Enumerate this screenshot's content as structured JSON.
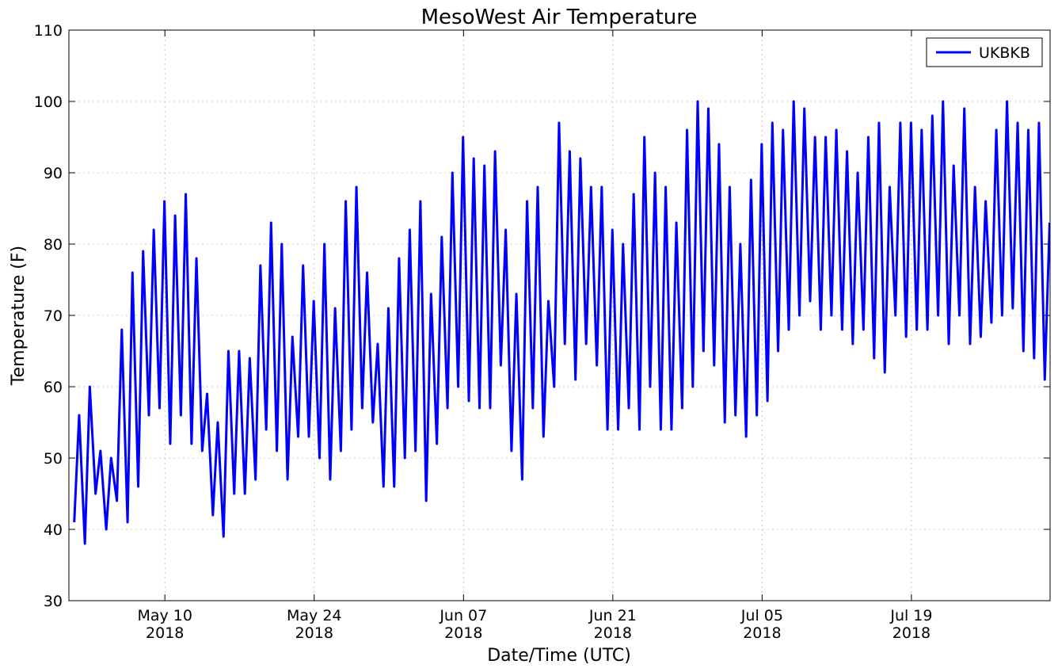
{
  "chart_data": {
    "type": "line",
    "title": "MesoWest Air Temperature",
    "x_label": "Date/Time (UTC)",
    "y_label": "Temperature (F)",
    "xlim": [
      "2018-05-01 00:00",
      "2018-08-01 00:00"
    ],
    "xticks": [
      {
        "value": "2018-05-10 00:00",
        "label": [
          "May 10",
          "2018"
        ]
      },
      {
        "value": "2018-05-24 00:00",
        "label": [
          "May 24",
          "2018"
        ]
      },
      {
        "value": "2018-06-07 00:00",
        "label": [
          "Jun 07",
          "2018"
        ]
      },
      {
        "value": "2018-06-21 00:00",
        "label": [
          "Jun 21",
          "2018"
        ]
      },
      {
        "value": "2018-07-05 00:00",
        "label": [
          "Jul 05",
          "2018"
        ]
      },
      {
        "value": "2018-07-19 00:00",
        "label": [
          "Jul 19",
          "2018"
        ]
      }
    ],
    "ylim": [
      30,
      110
    ],
    "yticks": [
      30,
      40,
      50,
      60,
      70,
      80,
      90,
      100,
      110
    ],
    "grid": true,
    "legend": "upper right",
    "x": [
      "2018-05-01 12:00",
      "2018-05-01 23:00",
      "2018-05-02 12:00",
      "2018-05-02 23:00",
      "2018-05-03 12:00",
      "2018-05-03 23:00",
      "2018-05-04 12:00",
      "2018-05-04 23:00",
      "2018-05-05 12:00",
      "2018-05-05 23:00",
      "2018-05-06 12:00",
      "2018-05-06 23:00",
      "2018-05-07 12:00",
      "2018-05-07 23:00",
      "2018-05-08 12:00",
      "2018-05-08 23:00",
      "2018-05-09 12:00",
      "2018-05-09 23:00",
      "2018-05-10 12:00",
      "2018-05-10 23:00",
      "2018-05-11 12:00",
      "2018-05-11 23:00",
      "2018-05-12 12:00",
      "2018-05-12 23:00",
      "2018-05-13 12:00",
      "2018-05-13 23:00",
      "2018-05-14 12:00",
      "2018-05-14 23:00",
      "2018-05-15 12:00",
      "2018-05-15 23:00",
      "2018-05-16 12:00",
      "2018-05-16 23:00",
      "2018-05-17 12:00",
      "2018-05-17 23:00",
      "2018-05-18 12:00",
      "2018-05-18 23:00",
      "2018-05-19 12:00",
      "2018-05-19 23:00",
      "2018-05-20 12:00",
      "2018-05-20 23:00",
      "2018-05-21 12:00",
      "2018-05-21 23:00",
      "2018-05-22 12:00",
      "2018-05-22 23:00",
      "2018-05-23 12:00",
      "2018-05-23 23:00",
      "2018-05-24 12:00",
      "2018-05-24 23:00",
      "2018-05-25 12:00",
      "2018-05-25 23:00",
      "2018-05-26 12:00",
      "2018-05-26 23:00",
      "2018-05-27 12:00",
      "2018-05-27 23:00",
      "2018-05-28 12:00",
      "2018-05-28 23:00",
      "2018-05-29 12:00",
      "2018-05-29 23:00",
      "2018-05-30 12:00",
      "2018-05-30 23:00",
      "2018-05-31 12:00",
      "2018-05-31 23:00",
      "2018-06-01 12:00",
      "2018-06-01 23:00",
      "2018-06-02 12:00",
      "2018-06-02 23:00",
      "2018-06-03 12:00",
      "2018-06-03 23:00",
      "2018-06-04 12:00",
      "2018-06-04 23:00",
      "2018-06-05 12:00",
      "2018-06-05 23:00",
      "2018-06-06 12:00",
      "2018-06-06 23:00",
      "2018-06-07 12:00",
      "2018-06-07 23:00",
      "2018-06-08 12:00",
      "2018-06-08 23:00",
      "2018-06-09 12:00",
      "2018-06-09 23:00",
      "2018-06-10 12:00",
      "2018-06-10 23:00",
      "2018-06-11 12:00",
      "2018-06-11 23:00",
      "2018-06-12 12:00",
      "2018-06-12 23:00",
      "2018-06-13 12:00",
      "2018-06-13 23:00",
      "2018-06-14 12:00",
      "2018-06-14 23:00",
      "2018-06-15 12:00",
      "2018-06-15 23:00",
      "2018-06-16 12:00",
      "2018-06-16 23:00",
      "2018-06-17 12:00",
      "2018-06-17 23:00",
      "2018-06-18 12:00",
      "2018-06-18 23:00",
      "2018-06-19 12:00",
      "2018-06-19 23:00",
      "2018-06-20 12:00",
      "2018-06-20 23:00",
      "2018-06-21 12:00",
      "2018-06-21 23:00",
      "2018-06-22 12:00",
      "2018-06-22 23:00",
      "2018-06-23 12:00",
      "2018-06-23 23:00",
      "2018-06-24 12:00",
      "2018-06-24 23:00",
      "2018-06-25 12:00",
      "2018-06-25 23:00",
      "2018-06-26 12:00",
      "2018-06-26 23:00",
      "2018-06-27 12:00",
      "2018-06-27 23:00",
      "2018-06-28 12:00",
      "2018-06-28 23:00",
      "2018-06-29 12:00",
      "2018-06-29 23:00",
      "2018-06-30 12:00",
      "2018-06-30 23:00",
      "2018-07-01 12:00",
      "2018-07-01 23:00",
      "2018-07-02 12:00",
      "2018-07-02 23:00",
      "2018-07-03 12:00",
      "2018-07-03 23:00",
      "2018-07-04 12:00",
      "2018-07-04 23:00",
      "2018-07-05 12:00",
      "2018-07-05 23:00",
      "2018-07-06 12:00",
      "2018-07-06 23:00",
      "2018-07-07 12:00",
      "2018-07-07 23:00",
      "2018-07-08 12:00",
      "2018-07-08 23:00",
      "2018-07-09 12:00",
      "2018-07-09 23:00",
      "2018-07-10 12:00",
      "2018-07-10 23:00",
      "2018-07-11 12:00",
      "2018-07-11 23:00",
      "2018-07-12 12:00",
      "2018-07-12 23:00",
      "2018-07-13 12:00",
      "2018-07-13 23:00",
      "2018-07-14 12:00",
      "2018-07-14 23:00",
      "2018-07-15 12:00",
      "2018-07-15 23:00",
      "2018-07-16 12:00",
      "2018-07-16 23:00",
      "2018-07-17 12:00",
      "2018-07-17 23:00",
      "2018-07-18 12:00",
      "2018-07-18 23:00",
      "2018-07-19 12:00",
      "2018-07-19 23:00",
      "2018-07-20 12:00",
      "2018-07-20 23:00",
      "2018-07-21 12:00",
      "2018-07-21 23:00",
      "2018-07-22 12:00",
      "2018-07-22 23:00",
      "2018-07-23 12:00",
      "2018-07-23 23:00",
      "2018-07-24 12:00",
      "2018-07-24 23:00",
      "2018-07-25 12:00",
      "2018-07-25 23:00",
      "2018-07-26 12:00",
      "2018-07-26 23:00",
      "2018-07-27 12:00",
      "2018-07-27 23:00",
      "2018-07-28 12:00",
      "2018-07-28 23:00",
      "2018-07-29 12:00",
      "2018-07-29 23:00",
      "2018-07-30 12:00",
      "2018-07-30 23:00",
      "2018-07-31 12:00",
      "2018-07-31 23:00"
    ],
    "series": [
      {
        "name": "UKBKB",
        "color": "#0000ff",
        "values": [
          41,
          56,
          38,
          60,
          45,
          51,
          40,
          50,
          44,
          68,
          41,
          76,
          46,
          79,
          56,
          82,
          57,
          86,
          52,
          84,
          56,
          87,
          52,
          78,
          51,
          59,
          42,
          55,
          39,
          65,
          45,
          65,
          45,
          64,
          47,
          77,
          54,
          83,
          51,
          80,
          47,
          67,
          53,
          77,
          53,
          72,
          50,
          80,
          47,
          71,
          51,
          86,
          54,
          88,
          57,
          76,
          55,
          66,
          46,
          71,
          46,
          78,
          50,
          82,
          51,
          86,
          44,
          73,
          52,
          81,
          57,
          90,
          60,
          95,
          58,
          92,
          57,
          91,
          57,
          93,
          63,
          82,
          51,
          73,
          47,
          86,
          57,
          88,
          53,
          72,
          60,
          97,
          66,
          93,
          61,
          92,
          66,
          88,
          63,
          88,
          54,
          82,
          54,
          80,
          57,
          87,
          54,
          95,
          60,
          90,
          54,
          88,
          54,
          83,
          57,
          96,
          60,
          100,
          65,
          99,
          63,
          94,
          55,
          88,
          56,
          80,
          53,
          89,
          56,
          94,
          58,
          97,
          65,
          96,
          68,
          100,
          70,
          99,
          72,
          95,
          68,
          95,
          70,
          96,
          68,
          93,
          66,
          90,
          68,
          95,
          64,
          97,
          62,
          88,
          70,
          97,
          67,
          97,
          68,
          96,
          68,
          98,
          70,
          100,
          66,
          91,
          70,
          99,
          66,
          88,
          67,
          86,
          69,
          96,
          70,
          100,
          71,
          97,
          65,
          96,
          64,
          97,
          61,
          83
        ]
      }
    ]
  }
}
